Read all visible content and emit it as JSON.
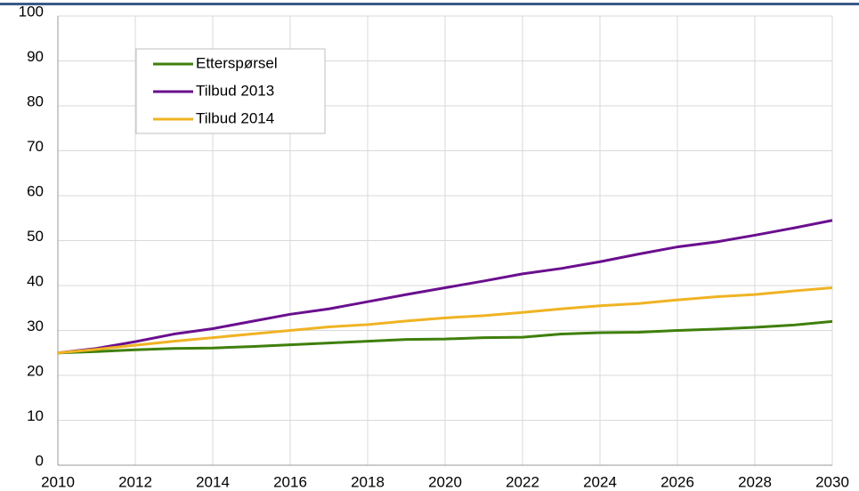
{
  "chart_data": {
    "type": "line",
    "x": [
      2010,
      2011,
      2012,
      2013,
      2014,
      2015,
      2016,
      2017,
      2018,
      2019,
      2020,
      2021,
      2022,
      2023,
      2024,
      2025,
      2026,
      2027,
      2028,
      2029,
      2030
    ],
    "series": [
      {
        "name": "Etterspørsel",
        "color": "#3f7f0b",
        "values": [
          25,
          25.3,
          25.7,
          26,
          26.1,
          26.4,
          26.8,
          27.2,
          27.6,
          28,
          28.1,
          28.4,
          28.5,
          29.2,
          29.5,
          29.6,
          30,
          30.3,
          30.7,
          31.2,
          32
        ]
      },
      {
        "name": "Tilbud 2013",
        "color": "#6a0f8e",
        "values": [
          25,
          26,
          27.5,
          29.2,
          30.4,
          32,
          33.6,
          34.8,
          36.4,
          38,
          39.5,
          41,
          42.6,
          43.8,
          45.3,
          47,
          48.6,
          49.7,
          51.2,
          52.8,
          54.5
        ]
      },
      {
        "name": "Tilbud 2014",
        "color": "#f0b323",
        "values": [
          25,
          25.8,
          26.7,
          27.6,
          28.4,
          29.2,
          30,
          30.8,
          31.3,
          32.1,
          32.8,
          33.3,
          34,
          34.8,
          35.5,
          36,
          36.8,
          37.5,
          38,
          38.8,
          39.5
        ]
      }
    ],
    "xlim": [
      2010,
      2030
    ],
    "xticks": [
      2010,
      2012,
      2014,
      2016,
      2018,
      2020,
      2022,
      2024,
      2026,
      2028,
      2030
    ],
    "ylim": [
      0,
      100
    ],
    "yticks": [
      0,
      10,
      20,
      30,
      40,
      50,
      60,
      70,
      80,
      90,
      100
    ],
    "grid": true,
    "legend": "upper left"
  }
}
